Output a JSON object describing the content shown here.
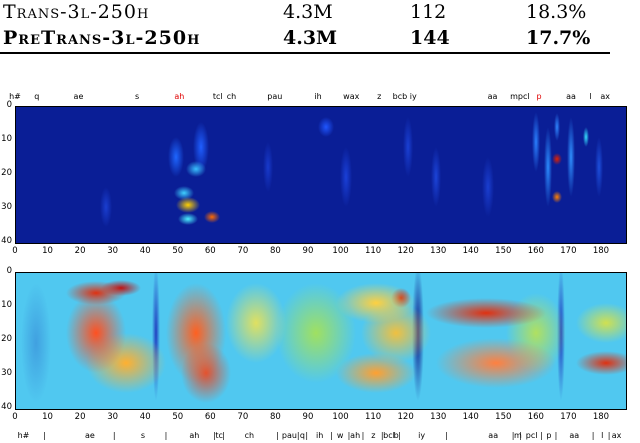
{
  "table": {
    "rows": [
      {
        "name": "Trans-3l-250h",
        "params": "4.3M",
        "col2": "112",
        "per": "18.3%"
      },
      {
        "name": "PreTrans-3l-250h",
        "params": "4.3M",
        "col2": "144",
        "per": "17.7%"
      }
    ]
  },
  "figure": {
    "top_labels": [
      {
        "t": "h#",
        "x": 0,
        "red": false
      },
      {
        "t": "q",
        "x": 6.7,
        "red": false
      },
      {
        "t": "ae",
        "x": 19.5,
        "red": false
      },
      {
        "t": "s",
        "x": 37.5,
        "red": false
      },
      {
        "t": "ah",
        "x": 50.5,
        "red": true
      },
      {
        "t": "tcl",
        "x": 62.3,
        "red": false
      },
      {
        "t": "ch",
        "x": 66.5,
        "red": false
      },
      {
        "t": "pau",
        "x": 79.8,
        "red": false
      },
      {
        "t": "ih",
        "x": 93.1,
        "red": false
      },
      {
        "t": "wax",
        "x": 103.3,
        "red": false
      },
      {
        "t": "z",
        "x": 111.9,
        "red": false
      },
      {
        "t": "bcb iy",
        "x": 119.7,
        "red": false
      },
      {
        "t": "aa",
        "x": 146.7,
        "red": false
      },
      {
        "t": "mpcl",
        "x": 155.1,
        "red": false
      },
      {
        "t": "p",
        "x": 161.0,
        "red": true
      },
      {
        "t": "aa",
        "x": 170.8,
        "red": false
      },
      {
        "t": "l",
        "x": 176.8,
        "red": false
      },
      {
        "t": "ax",
        "x": 181.3,
        "red": false
      }
    ],
    "bottom_labels": [
      {
        "t": "h#",
        "x": 2.6
      },
      {
        "t": "|",
        "x": 9.1
      },
      {
        "t": "ae",
        "x": 23.0
      },
      {
        "t": "|",
        "x": 30.5
      },
      {
        "t": "s",
        "x": 39.3
      },
      {
        "t": "|",
        "x": 46.4
      },
      {
        "t": "ah",
        "x": 55.1
      },
      {
        "t": "|",
        "x": 61.3
      },
      {
        "t": "tc",
        "x": 62.7
      },
      {
        "t": "|",
        "x": 64.1
      },
      {
        "t": "ch",
        "x": 72.0
      },
      {
        "t": "|",
        "x": 80.6
      },
      {
        "t": "pau",
        "x": 84.3
      },
      {
        "t": "|",
        "x": 87.0
      },
      {
        "t": "q",
        "x": 88.3
      },
      {
        "t": "|",
        "x": 89.6
      },
      {
        "t": "ih",
        "x": 93.6
      },
      {
        "t": "|",
        "x": 97.2
      },
      {
        "t": "w",
        "x": 99.9
      },
      {
        "t": "|",
        "x": 102.6
      },
      {
        "t": "ah",
        "x": 104.5
      },
      {
        "t": "|",
        "x": 106.9
      },
      {
        "t": "z",
        "x": 110.1
      },
      {
        "t": "|",
        "x": 112.8
      },
      {
        "t": "bcl",
        "x": 114.9
      },
      {
        "t": "b",
        "x": 117.1
      },
      {
        "t": "|",
        "x": 118.1
      },
      {
        "t": "iy",
        "x": 124.9
      },
      {
        "t": "|",
        "x": 132.6
      },
      {
        "t": "aa",
        "x": 146.9
      },
      {
        "t": "|",
        "x": 153.0
      },
      {
        "t": "m",
        "x": 154.5
      },
      {
        "t": "|",
        "x": 155.3
      },
      {
        "t": "pcl",
        "x": 158.7
      },
      {
        "t": "|",
        "x": 161.7
      },
      {
        "t": "p",
        "x": 164.0
      },
      {
        "t": "|",
        "x": 166.2
      },
      {
        "t": "aa",
        "x": 171.8
      },
      {
        "t": "|",
        "x": 177.6
      },
      {
        "t": "l",
        "x": 180.4
      },
      {
        "t": "|",
        "x": 182.5
      },
      {
        "t": "ax",
        "x": 184.8
      }
    ],
    "x_ticks": [
      "0",
      "10",
      "20",
      "30",
      "40",
      "50",
      "60",
      "70",
      "80",
      "90",
      "100",
      "110",
      "120",
      "130",
      "140",
      "150",
      "160",
      "170",
      "180"
    ],
    "y_ticks": [
      "0",
      "10",
      "20",
      "30",
      "40"
    ]
  }
}
